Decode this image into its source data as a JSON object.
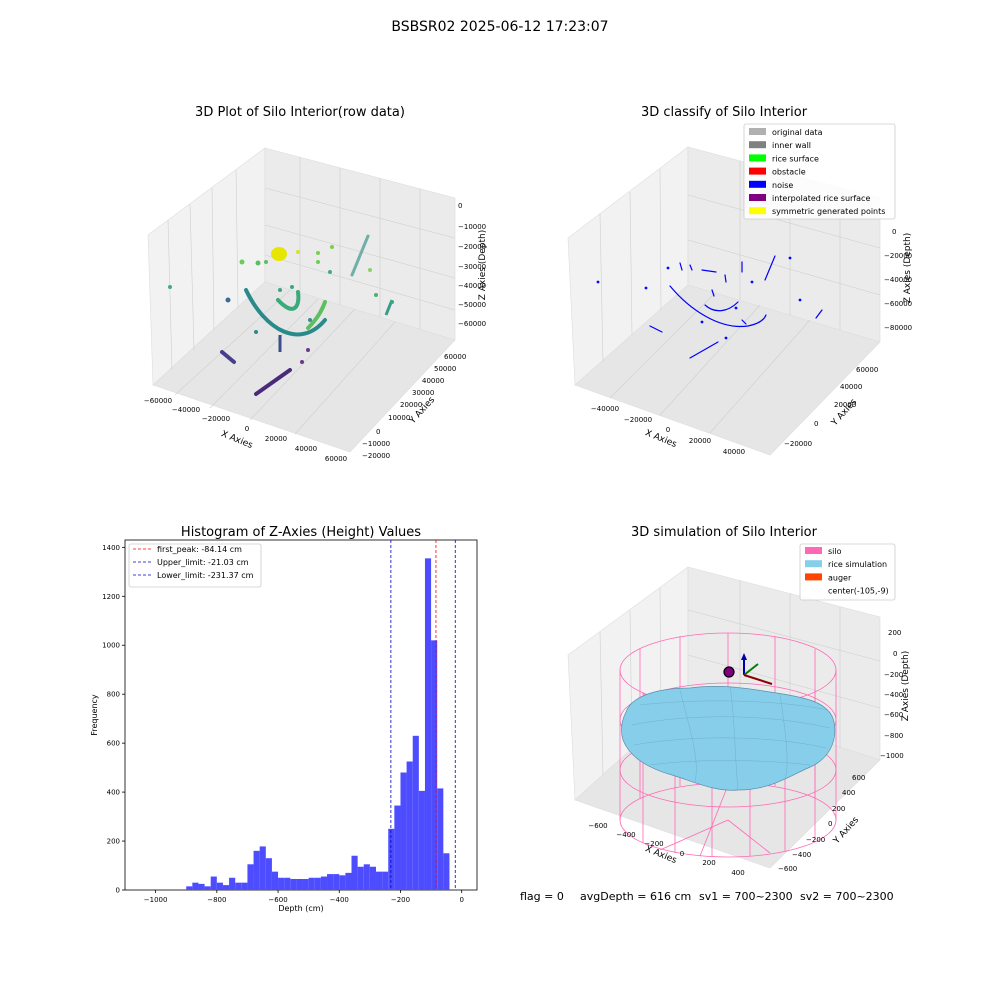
{
  "figure_title": "BSBSR02 2025-06-12 17:23:07",
  "status_line": {
    "flag": "flag = 0",
    "avg_depth": "avgDepth = 616 cm",
    "sv1": "sv1 = 700~2300",
    "sv2": "sv2 = 700~2300"
  },
  "colors": {
    "hist_bar": "#4d4dff",
    "first_peak": "#ff0000",
    "limits": "#0000cc",
    "pane": "#f2f2f2",
    "grid": "#cccccc",
    "silo": "#ff69b4",
    "rice": "#87ceeb",
    "auger": "#ff4500",
    "marker": "#800080"
  },
  "chart_data": [
    {
      "type": "scatter",
      "projection": "3d",
      "title": "3D Plot of Silo Interior(row data)",
      "xlabel": "X Axies",
      "ylabel": "Y Axies",
      "zlabel": "Z Axies (Depth)",
      "x_ticks": [
        "−60000",
        "−40000",
        "−20000",
        "0",
        "20000",
        "40000",
        "60000"
      ],
      "y_ticks": [
        "−20000",
        "−10000",
        "0",
        "10000",
        "20000",
        "30000",
        "40000",
        "50000",
        "60000"
      ],
      "z_ticks": [
        "0",
        "−10000",
        "−20000",
        "−30000",
        "−40000",
        "−50000",
        "−60000"
      ],
      "colormap": "viridis",
      "grid": true
    },
    {
      "type": "scatter",
      "projection": "3d",
      "title": "3D classify of Silo Interior",
      "xlabel": "X Axies",
      "ylabel": "Y Axies",
      "zlabel": "Z Axies (Depth)",
      "x_ticks": [
        "−40000",
        "−20000",
        "0",
        "20000",
        "40000"
      ],
      "y_ticks": [
        "−20000",
        "0",
        "20000",
        "40000",
        "60000"
      ],
      "z_ticks": [
        "0",
        "−20000",
        "−40000",
        "−60000",
        "−80000"
      ],
      "legend_position": "top-right",
      "legend": [
        {
          "label": "original data",
          "color": "#b0b0b0"
        },
        {
          "label": "inner wall",
          "color": "#808080"
        },
        {
          "label": "rice surface",
          "color": "#00ff00"
        },
        {
          "label": "obstacle",
          "color": "#ff0000"
        },
        {
          "label": "noise",
          "color": "#0000ff"
        },
        {
          "label": "interpolated rice surface",
          "color": "#800080"
        },
        {
          "label": "symmetric generated points",
          "color": "#ffff00"
        }
      ],
      "grid": true
    },
    {
      "type": "bar",
      "title": "Histogram of Z-Axies (Height) Values",
      "xlabel": "Depth (cm)",
      "ylabel": "Frequency",
      "xlim": [
        -1100,
        50
      ],
      "ylim": [
        0,
        1430
      ],
      "x_ticks": [
        -1000,
        -800,
        -600,
        -400,
        -200,
        0
      ],
      "y_ticks": [
        0,
        200,
        400,
        600,
        800,
        1000,
        1200,
        1400
      ],
      "bin_width": 20,
      "bins": [
        {
          "x": -900,
          "value": 15
        },
        {
          "x": -880,
          "value": 30
        },
        {
          "x": -860,
          "value": 25
        },
        {
          "x": -840,
          "value": 15
        },
        {
          "x": -820,
          "value": 55
        },
        {
          "x": -800,
          "value": 30
        },
        {
          "x": -780,
          "value": 20
        },
        {
          "x": -760,
          "value": 50
        },
        {
          "x": -740,
          "value": 30
        },
        {
          "x": -720,
          "value": 30
        },
        {
          "x": -700,
          "value": 105
        },
        {
          "x": -680,
          "value": 160
        },
        {
          "x": -660,
          "value": 178
        },
        {
          "x": -640,
          "value": 130
        },
        {
          "x": -620,
          "value": 75
        },
        {
          "x": -600,
          "value": 50
        },
        {
          "x": -580,
          "value": 50
        },
        {
          "x": -560,
          "value": 45
        },
        {
          "x": -540,
          "value": 45
        },
        {
          "x": -520,
          "value": 45
        },
        {
          "x": -500,
          "value": 50
        },
        {
          "x": -480,
          "value": 50
        },
        {
          "x": -460,
          "value": 55
        },
        {
          "x": -440,
          "value": 65
        },
        {
          "x": -420,
          "value": 65
        },
        {
          "x": -400,
          "value": 60
        },
        {
          "x": -380,
          "value": 70
        },
        {
          "x": -360,
          "value": 140
        },
        {
          "x": -340,
          "value": 95
        },
        {
          "x": -320,
          "value": 105
        },
        {
          "x": -300,
          "value": 95
        },
        {
          "x": -280,
          "value": 75
        },
        {
          "x": -260,
          "value": 75
        },
        {
          "x": -240,
          "value": 250
        },
        {
          "x": -220,
          "value": 345
        },
        {
          "x": -200,
          "value": 480
        },
        {
          "x": -180,
          "value": 525
        },
        {
          "x": -160,
          "value": 630
        },
        {
          "x": -140,
          "value": 405
        },
        {
          "x": -120,
          "value": 1355
        },
        {
          "x": -100,
          "value": 1020
        },
        {
          "x": -80,
          "value": 415
        },
        {
          "x": -60,
          "value": 150
        }
      ],
      "vlines": [
        {
          "label": "first_peak: -84.14 cm",
          "x": -84.14,
          "color": "#ff0000"
        },
        {
          "label": "Upper_limit: -21.03 cm",
          "x": -21.03,
          "color": "#0000cc"
        },
        {
          "label": "Lower_limit: -231.37 cm",
          "x": -231.37,
          "color": "#0000cc"
        }
      ],
      "legend_position": "top-left"
    },
    {
      "type": "surface",
      "projection": "3d",
      "title": "3D simulation of Silo Interior",
      "xlabel": "X Axies",
      "ylabel": "Y Axies",
      "zlabel": "Z Axies (Depth)",
      "x_ticks": [
        "−600",
        "−400",
        "−200",
        "0",
        "200",
        "400"
      ],
      "y_ticks": [
        "−600",
        "−400",
        "−200",
        "0",
        "200",
        "400",
        "600"
      ],
      "z_ticks": [
        "200",
        "0",
        "−200",
        "−400",
        "−600",
        "−800",
        "−1000"
      ],
      "legend_position": "top-right",
      "legend": [
        {
          "label": "silo",
          "color": "#ff69b4"
        },
        {
          "label": "rice simulation",
          "color": "#87ceeb"
        },
        {
          "label": "auger",
          "color": "#ff4500"
        },
        {
          "label": "center(-105,-9)",
          "color": ""
        }
      ],
      "grid": true
    }
  ]
}
